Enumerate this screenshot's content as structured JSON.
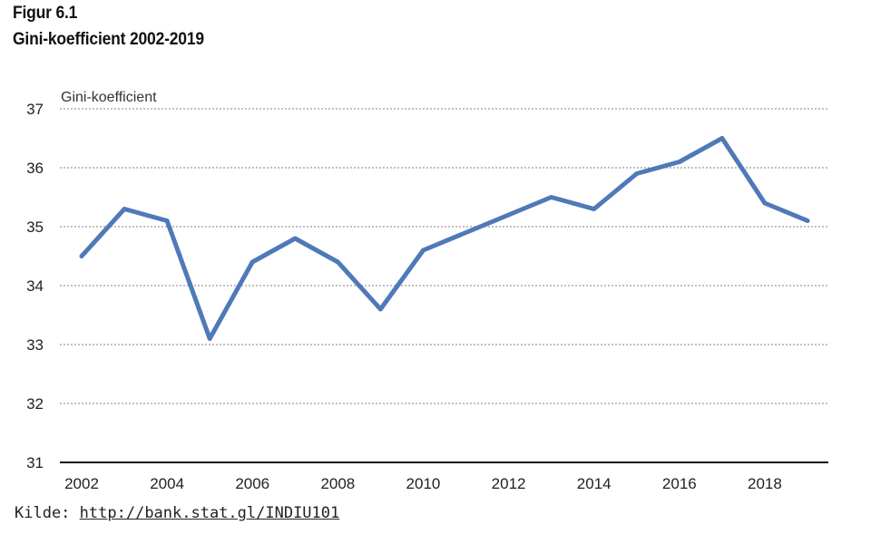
{
  "figure": {
    "label": "Figur 6.1",
    "title": "Gini-koefficient 2002-2019"
  },
  "source": {
    "prefix": "Kilde:",
    "link": "http://bank.stat.gl/INDIU101"
  },
  "colors": {
    "line": "#4f79b8",
    "grid": "#9a9a9a",
    "axis": "#111111",
    "text": "#222222"
  },
  "chart_data": {
    "type": "line",
    "title": "Gini-koefficient 2002-2019",
    "ylabel": "Gini-koefficient",
    "xlabel": "",
    "ylim": [
      31,
      37
    ],
    "yticks": [
      31,
      32,
      33,
      34,
      35,
      36,
      37
    ],
    "xticks": [
      2002,
      2004,
      2006,
      2008,
      2010,
      2012,
      2014,
      2016,
      2018
    ],
    "grid": true,
    "x": [
      2002,
      2003,
      2004,
      2005,
      2006,
      2007,
      2008,
      2009,
      2010,
      2011,
      2012,
      2013,
      2014,
      2015,
      2016,
      2017,
      2018,
      2019
    ],
    "series": [
      {
        "values": [
          34.5,
          35.3,
          35.1,
          33.1,
          34.4,
          34.8,
          34.4,
          33.6,
          34.6,
          34.9,
          35.2,
          35.5,
          35.3,
          35.9,
          36.1,
          36.5,
          35.4,
          35.1
        ]
      }
    ]
  }
}
